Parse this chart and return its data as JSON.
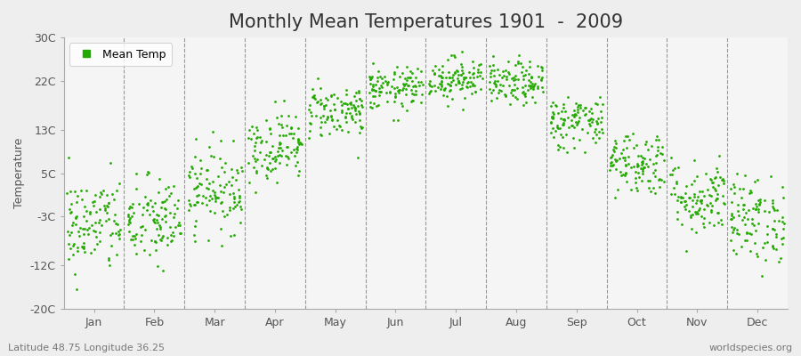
{
  "title": "Monthly Mean Temperatures 1901  -  2009",
  "ylabel": "Temperature",
  "xlabel_months": [
    "Jan",
    "Feb",
    "Mar",
    "Apr",
    "May",
    "Jun",
    "Jul",
    "Aug",
    "Sep",
    "Oct",
    "Nov",
    "Dec"
  ],
  "yticks": [
    -20,
    -12,
    -3,
    5,
    13,
    22,
    30
  ],
  "ytick_labels": [
    "-20C",
    "-12C",
    "-3C",
    "5C",
    "13C",
    "22C",
    "30C"
  ],
  "ylim": [
    -20,
    30
  ],
  "xlim": [
    0,
    12
  ],
  "dot_color": "#22aa00",
  "bg_color": "#eeeeee",
  "plot_bg": "#f5f5f5",
  "legend_label": "Mean Temp",
  "footer_left": "Latitude 48.75 Longitude 36.25",
  "footer_right": "worldspecies.org",
  "title_fontsize": 15,
  "axis_fontsize": 9,
  "footer_fontsize": 8,
  "mean_temps": [
    -4.5,
    -4.0,
    2.0,
    10.0,
    16.5,
    20.5,
    22.5,
    21.5,
    14.5,
    7.0,
    0.5,
    -3.5
  ],
  "std_temps": [
    4.5,
    4.2,
    3.8,
    3.2,
    2.5,
    2.0,
    2.0,
    2.0,
    2.5,
    3.0,
    3.5,
    4.0
  ],
  "n_years": 109,
  "dot_size": 4,
  "vline_positions": [
    1,
    2,
    3,
    4,
    5,
    6,
    7,
    8,
    9,
    10,
    11
  ],
  "xtick_positions": [
    0.5,
    1.5,
    2.5,
    3.5,
    4.5,
    5.5,
    6.5,
    7.5,
    8.5,
    9.5,
    10.5,
    11.5
  ]
}
